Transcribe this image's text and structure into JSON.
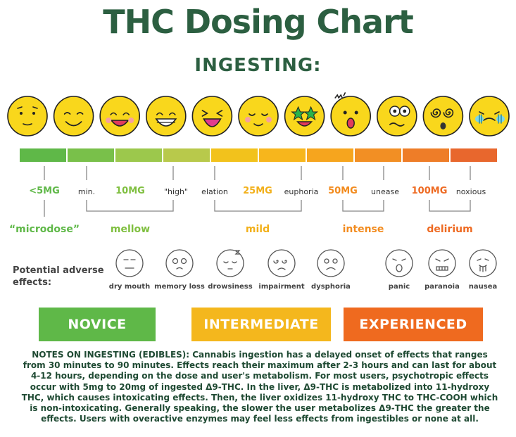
{
  "title": "THC Dosing Chart",
  "subtitle": "INGESTING:",
  "faces": [
    "neutral-face-icon",
    "smile-face-icon",
    "happy-face-icon",
    "grin-face-icon",
    "laugh-face-icon",
    "relaxed-face-icon",
    "star-eyes-face-icon",
    "surprised-face-icon",
    "confused-face-icon",
    "dizzy-face-icon",
    "sick-face-icon"
  ],
  "bar_colors": [
    "#5fb848",
    "#79c04a",
    "#9cc84c",
    "#b8c94b",
    "#f2c21c",
    "#f7b61c",
    "#f6a51e",
    "#f28f24",
    "#ee7d28",
    "#e8672d"
  ],
  "doses": [
    {
      "text": "<5MG",
      "color": "#5fb848"
    },
    {
      "text": "10MG",
      "color": "#7fbf3f"
    },
    {
      "text": "25MG",
      "color": "#f2b01a"
    },
    {
      "text": "50MG",
      "color": "#f28b1e"
    },
    {
      "text": "100MG",
      "color": "#ee6a22"
    }
  ],
  "ticks": [
    "min.",
    "\"high\"",
    "elation",
    "euphoria",
    "unease",
    "noxious"
  ],
  "levels": [
    {
      "text": "“microdose”",
      "color": "#5fb848"
    },
    {
      "text": "mellow",
      "color": "#7fbf3f"
    },
    {
      "text": "mild",
      "color": "#f2b01a"
    },
    {
      "text": "intense",
      "color": "#f28b1e"
    },
    {
      "text": "delirium",
      "color": "#ee6a22"
    }
  ],
  "adverse": {
    "label": "Potential adverse effects:",
    "items": [
      {
        "label": "dry mouth",
        "icon": "dry-mouth-face-icon"
      },
      {
        "label": "memory loss",
        "icon": "memory-loss-face-icon"
      },
      {
        "label": "drowsiness",
        "icon": "drowsy-face-icon"
      },
      {
        "label": "impairment",
        "icon": "impaired-face-icon"
      },
      {
        "label": "dysphoria",
        "icon": "dysphoria-face-icon"
      },
      {
        "label": "panic",
        "icon": "panic-face-icon"
      },
      {
        "label": "paranoia",
        "icon": "paranoia-face-icon"
      },
      {
        "label": "nausea",
        "icon": "nausea-face-icon"
      }
    ]
  },
  "tiers": [
    {
      "text": "NOVICE",
      "color": "#5fb848"
    },
    {
      "text": "INTERMEDIATE",
      "color": "#f4b71d"
    },
    {
      "text": "EXPERIENCED",
      "color": "#ef6a1f"
    }
  ],
  "notes": "NOTES ON INGESTING (EDIBLES): Cannabis ingestion has a delayed onset of effects that ranges from 30 minutes to 90 minutes. Effects reach their maximum after 2-3 hours and can last for about 4-12 hours, depending on the dose and user's metabolism. For most users, psychotropic effects occur with 5mg to 20mg of ingested Δ9-THC. In the liver, Δ9-THC is metabolized into 11-hydroxy THC, which causes intoxicating effects. Then, the liver oxidizes 11-hydroxy THC to THC-COOH which is non-intoxicating. Generally speaking, the slower the user metabolizes Δ9-THC the greater the effects. Users with overactive enzymes may feel less effects from ingestibles or none at all."
}
